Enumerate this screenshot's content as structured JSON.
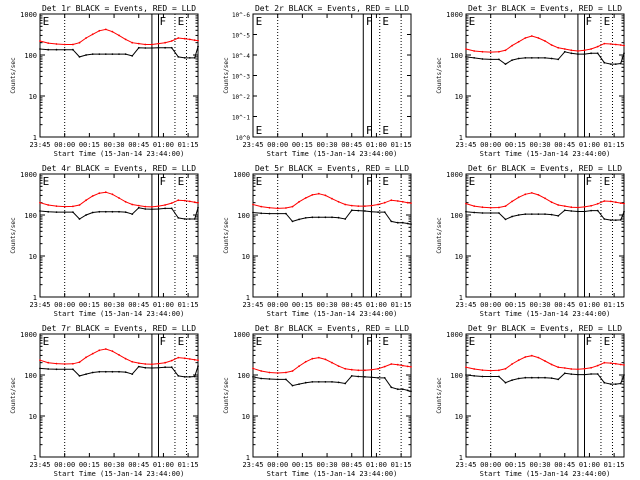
{
  "chart_data": {
    "type": "line",
    "grid_title_template": "BLACK = Events, RED = LLD",
    "x_tick_labels": [
      "23:45",
      "00:00",
      "00:15",
      "00:30",
      "00:45",
      "01:00",
      "01:15"
    ],
    "x_tick_minutes": [
      0,
      15,
      30,
      45,
      60,
      75,
      90
    ],
    "xlim_minutes": [
      0,
      96
    ],
    "y_tick_labels_log": [
      "1",
      "10",
      "100",
      "1000"
    ],
    "y_tick_values_log": [
      1,
      10,
      100,
      1000
    ],
    "ylim_log": [
      1,
      1000
    ],
    "xlabel": "Start Time (15-Jan-14 23:44:00)",
    "ylabel": "Counts/sec",
    "series_colors": {
      "events": "#000000",
      "lld": "#ff0000"
    },
    "panels": [
      {
        "id": "det1",
        "title": "Det 1r BLACK = Events, RED = LLD",
        "markers": [
          {
            "label": "E",
            "x": 1
          },
          {
            "label": "F",
            "x": 72
          },
          {
            "label": "E",
            "x": 83
          }
        ],
        "dotted_x": [
          15,
          82,
          89
        ],
        "solid_x": [
          68,
          72
        ],
        "empty": false,
        "events": {
          "x": [
            0,
            5,
            10,
            15,
            20,
            24,
            28,
            32,
            36,
            40,
            44,
            48,
            52,
            56,
            60,
            64,
            68,
            72,
            76,
            80,
            84,
            88,
            91,
            94,
            96
          ],
          "y": [
            140,
            135,
            135,
            135,
            135,
            90,
            100,
            105,
            105,
            105,
            105,
            105,
            105,
            95,
            150,
            148,
            148,
            150,
            150,
            150,
            90,
            85,
            85,
            85,
            160
          ]
        },
        "lld": {
          "x": [
            0,
            5,
            10,
            15,
            20,
            24,
            28,
            32,
            36,
            40,
            44,
            48,
            52,
            56,
            60,
            64,
            68,
            72,
            76,
            80,
            84,
            88,
            91,
            94,
            96
          ],
          "y": [
            220,
            195,
            185,
            180,
            180,
            200,
            260,
            320,
            390,
            420,
            370,
            300,
            240,
            200,
            190,
            180,
            180,
            190,
            200,
            220,
            260,
            250,
            240,
            230,
            225
          ]
        }
      },
      {
        "id": "det2",
        "title": "Det 2r BLACK = Events, RED = LLD",
        "markers": [
          {
            "label": "E",
            "x": 1
          },
          {
            "label": "F",
            "x": 68
          },
          {
            "label": "E",
            "x": 78
          }
        ],
        "dotted_x": [
          15,
          77,
          90
        ],
        "solid_x": [
          67,
          72
        ],
        "empty": true,
        "y_tick_labels_override": [
          "10^0",
          "10^-1",
          "10^-2",
          "10^-3",
          "10^-4",
          "10^-5",
          "10^-6"
        ]
      },
      {
        "id": "det3",
        "title": "Det 3r BLACK = Events, RED = LLD",
        "markers": [
          {
            "label": "E",
            "x": 1
          },
          {
            "label": "F",
            "x": 72
          },
          {
            "label": "E",
            "x": 83
          }
        ],
        "dotted_x": [
          15,
          82,
          89
        ],
        "solid_x": [
          68,
          72
        ],
        "empty": false,
        "events": {
          "x": [
            0,
            5,
            10,
            15,
            20,
            24,
            28,
            32,
            36,
            40,
            44,
            48,
            52,
            56,
            60,
            64,
            68,
            72,
            76,
            80,
            84,
            88,
            91,
            94,
            96
          ],
          "y": [
            90,
            85,
            80,
            78,
            78,
            60,
            75,
            82,
            85,
            85,
            85,
            85,
            82,
            78,
            120,
            110,
            105,
            105,
            110,
            110,
            65,
            60,
            60,
            62,
            110
          ]
        },
        "lld": {
          "x": [
            0,
            5,
            10,
            15,
            20,
            24,
            28,
            32,
            36,
            40,
            44,
            48,
            52,
            56,
            60,
            64,
            68,
            72,
            76,
            80,
            84,
            88,
            91,
            94,
            96
          ],
          "y": [
            140,
            125,
            120,
            118,
            120,
            130,
            170,
            210,
            260,
            290,
            260,
            220,
            175,
            150,
            140,
            130,
            125,
            130,
            140,
            160,
            190,
            185,
            180,
            175,
            170
          ]
        }
      },
      {
        "id": "det4",
        "title": "Det 4r BLACK = Events, RED = LLD",
        "markers": [
          {
            "label": "E",
            "x": 1
          },
          {
            "label": "F",
            "x": 72
          },
          {
            "label": "E",
            "x": 83
          }
        ],
        "dotted_x": [
          15,
          82,
          89
        ],
        "solid_x": [
          68,
          72
        ],
        "empty": false,
        "events": {
          "x": [
            0,
            5,
            10,
            15,
            20,
            24,
            28,
            32,
            36,
            40,
            44,
            48,
            52,
            56,
            60,
            64,
            68,
            72,
            76,
            80,
            84,
            88,
            91,
            94,
            96
          ],
          "y": [
            125,
            120,
            118,
            118,
            118,
            80,
            100,
            115,
            120,
            120,
            120,
            120,
            118,
            105,
            150,
            140,
            138,
            140,
            145,
            145,
            85,
            80,
            80,
            80,
            150
          ]
        },
        "lld": {
          "x": [
            0,
            5,
            10,
            15,
            20,
            24,
            28,
            32,
            36,
            40,
            44,
            48,
            52,
            56,
            60,
            64,
            68,
            72,
            76,
            80,
            84,
            88,
            91,
            94,
            96
          ],
          "y": [
            200,
            175,
            165,
            160,
            162,
            175,
            230,
            290,
            340,
            360,
            320,
            260,
            210,
            180,
            170,
            160,
            158,
            165,
            175,
            195,
            230,
            225,
            215,
            205,
            200
          ]
        }
      },
      {
        "id": "det5",
        "title": "Det 5r BLACK = Events, RED = LLD",
        "markers": [
          {
            "label": "E",
            "x": 1
          },
          {
            "label": "F",
            "x": 68
          },
          {
            "label": "E",
            "x": 78
          }
        ],
        "dotted_x": [
          15,
          77,
          90
        ],
        "solid_x": [
          67,
          72
        ],
        "empty": false,
        "events": {
          "x": [
            0,
            5,
            10,
            15,
            20,
            24,
            28,
            32,
            36,
            40,
            44,
            48,
            52,
            56,
            60,
            64,
            68,
            72,
            76,
            80,
            84,
            88,
            91,
            94,
            96
          ],
          "y": [
            115,
            110,
            108,
            108,
            108,
            70,
            78,
            85,
            88,
            88,
            88,
            88,
            86,
            80,
            130,
            128,
            125,
            120,
            118,
            118,
            70,
            65,
            65,
            62,
            60
          ]
        },
        "lld": {
          "x": [
            0,
            5,
            10,
            15,
            20,
            24,
            28,
            32,
            36,
            40,
            44,
            48,
            52,
            56,
            60,
            64,
            68,
            72,
            76,
            80,
            84,
            88,
            91,
            94,
            96
          ],
          "y": [
            180,
            160,
            150,
            145,
            148,
            160,
            210,
            260,
            310,
            330,
            300,
            250,
            210,
            180,
            170,
            165,
            165,
            170,
            180,
            200,
            230,
            220,
            210,
            200,
            195
          ]
        }
      },
      {
        "id": "det6",
        "title": "Det 6r BLACK = Events, RED = LLD",
        "markers": [
          {
            "label": "E",
            "x": 1
          },
          {
            "label": "F",
            "x": 72
          },
          {
            "label": "E",
            "x": 83
          }
        ],
        "dotted_x": [
          15,
          82,
          89
        ],
        "solid_x": [
          68,
          72
        ],
        "empty": false,
        "events": {
          "x": [
            0,
            5,
            10,
            15,
            20,
            24,
            28,
            32,
            36,
            40,
            44,
            48,
            52,
            56,
            60,
            64,
            68,
            72,
            76,
            80,
            84,
            88,
            91,
            94,
            96
          ],
          "y": [
            120,
            115,
            112,
            112,
            112,
            78,
            92,
            100,
            105,
            105,
            105,
            105,
            102,
            95,
            130,
            125,
            122,
            122,
            128,
            128,
            80,
            75,
            75,
            76,
            120
          ]
        },
        "lld": {
          "x": [
            0,
            5,
            10,
            15,
            20,
            24,
            28,
            32,
            36,
            40,
            44,
            48,
            52,
            56,
            60,
            64,
            68,
            72,
            76,
            80,
            84,
            88,
            91,
            94,
            96
          ],
          "y": [
            190,
            165,
            155,
            150,
            152,
            165,
            215,
            270,
            320,
            345,
            310,
            255,
            205,
            175,
            165,
            155,
            152,
            158,
            168,
            188,
            220,
            215,
            205,
            195,
            190
          ]
        }
      },
      {
        "id": "det7",
        "title": "Det 7r BLACK = Events, RED = LLD",
        "markers": [
          {
            "label": "E",
            "x": 1
          },
          {
            "label": "F",
            "x": 72
          },
          {
            "label": "E",
            "x": 83
          }
        ],
        "dotted_x": [
          15,
          82,
          89
        ],
        "solid_x": [
          68,
          72
        ],
        "empty": false,
        "events": {
          "x": [
            0,
            5,
            10,
            15,
            20,
            24,
            28,
            32,
            36,
            40,
            44,
            48,
            52,
            56,
            60,
            64,
            68,
            72,
            76,
            80,
            84,
            88,
            91,
            94,
            96
          ],
          "y": [
            145,
            140,
            138,
            138,
            138,
            95,
            105,
            115,
            120,
            120,
            120,
            120,
            118,
            105,
            160,
            150,
            148,
            150,
            155,
            155,
            95,
            90,
            90,
            92,
            165
          ]
        },
        "lld": {
          "x": [
            0,
            5,
            10,
            15,
            20,
            24,
            28,
            32,
            36,
            40,
            44,
            48,
            52,
            56,
            60,
            64,
            68,
            72,
            76,
            80,
            84,
            88,
            91,
            94,
            96
          ],
          "y": [
            230,
            200,
            190,
            185,
            188,
            205,
            270,
            330,
            400,
            430,
            380,
            310,
            250,
            210,
            195,
            185,
            182,
            190,
            200,
            225,
            265,
            255,
            245,
            235,
            230
          ]
        }
      },
      {
        "id": "det8",
        "title": "Det 8r BLACK = Events, RED = LLD",
        "markers": [
          {
            "label": "E",
            "x": 1
          },
          {
            "label": "F",
            "x": 68
          },
          {
            "label": "E",
            "x": 78
          }
        ],
        "dotted_x": [
          15,
          77,
          90
        ],
        "solid_x": [
          67,
          72
        ],
        "empty": false,
        "events": {
          "x": [
            0,
            5,
            10,
            15,
            20,
            24,
            28,
            32,
            36,
            40,
            44,
            48,
            52,
            56,
            60,
            64,
            68,
            72,
            76,
            80,
            84,
            88,
            91,
            94,
            96
          ],
          "y": [
            90,
            82,
            80,
            78,
            78,
            55,
            60,
            65,
            68,
            68,
            68,
            68,
            66,
            62,
            95,
            92,
            90,
            88,
            85,
            85,
            50,
            45,
            45,
            42,
            40
          ]
        },
        "lld": {
          "x": [
            0,
            5,
            10,
            15,
            20,
            24,
            28,
            32,
            36,
            40,
            44,
            48,
            52,
            56,
            60,
            64,
            68,
            72,
            76,
            80,
            84,
            88,
            91,
            94,
            96
          ],
          "y": [
            145,
            125,
            115,
            112,
            115,
            125,
            165,
            210,
            250,
            265,
            240,
            200,
            165,
            142,
            135,
            130,
            130,
            135,
            142,
            160,
            185,
            178,
            170,
            162,
            158
          ]
        }
      },
      {
        "id": "det9",
        "title": "Det 9r BLACK = Events, RED = LLD",
        "markers": [
          {
            "label": "E",
            "x": 1
          },
          {
            "label": "F",
            "x": 72
          },
          {
            "label": "E",
            "x": 83
          }
        ],
        "dotted_x": [
          15,
          82,
          89
        ],
        "solid_x": [
          68,
          72
        ],
        "empty": false,
        "events": {
          "x": [
            0,
            5,
            10,
            15,
            20,
            24,
            28,
            32,
            36,
            40,
            44,
            48,
            52,
            56,
            60,
            64,
            68,
            72,
            76,
            80,
            84,
            88,
            91,
            94,
            96
          ],
          "y": [
            100,
            95,
            92,
            92,
            92,
            65,
            75,
            82,
            86,
            86,
            86,
            86,
            84,
            78,
            110,
            105,
            102,
            102,
            106,
            106,
            65,
            60,
            60,
            62,
            100
          ]
        },
        "lld": {
          "x": [
            0,
            5,
            10,
            15,
            20,
            24,
            28,
            32,
            36,
            40,
            44,
            48,
            52,
            56,
            60,
            64,
            68,
            72,
            76,
            80,
            84,
            88,
            91,
            94,
            96
          ],
          "y": [
            155,
            140,
            132,
            128,
            130,
            142,
            185,
            230,
            275,
            295,
            265,
            220,
            180,
            155,
            148,
            140,
            138,
            142,
            150,
            170,
            200,
            195,
            188,
            180,
            175
          ]
        }
      }
    ]
  }
}
